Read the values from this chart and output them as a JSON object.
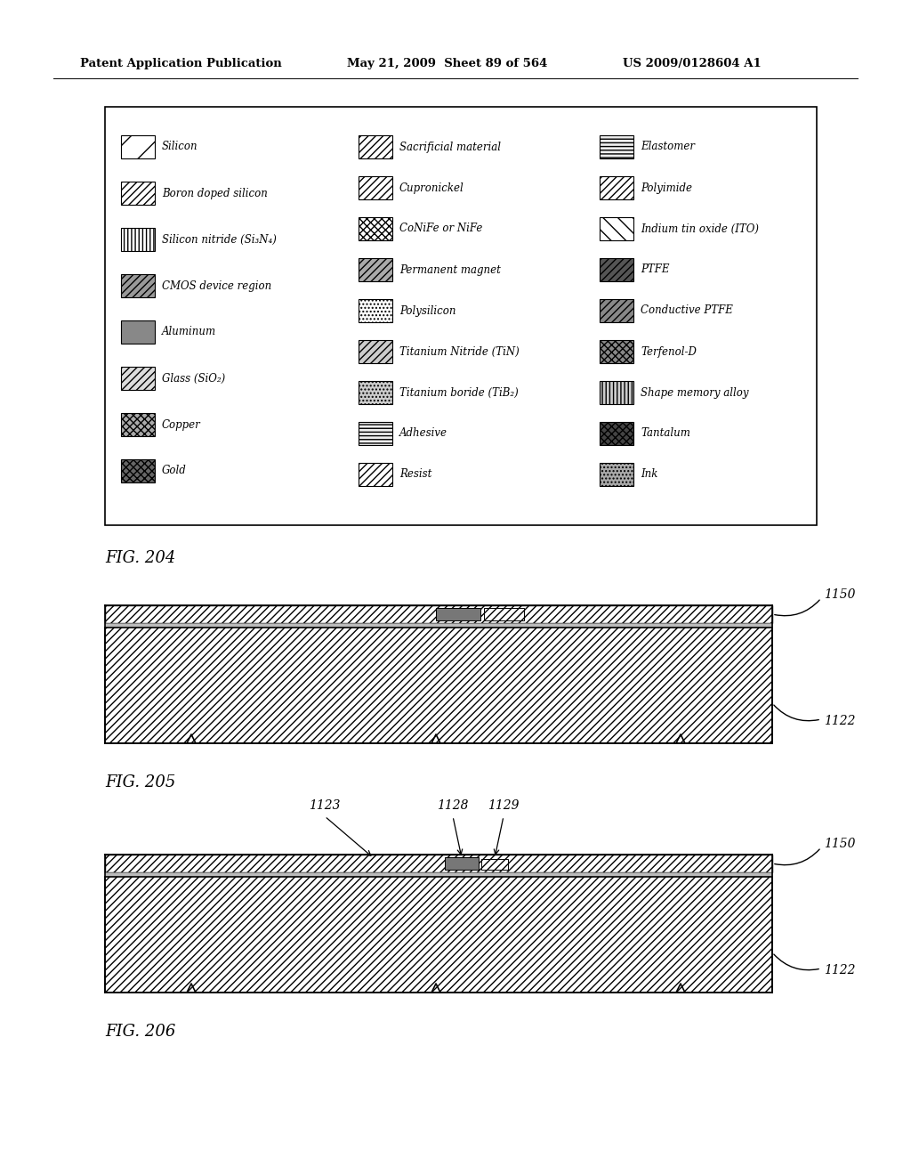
{
  "header_left": "Patent Application Publication",
  "header_mid": "May 21, 2009  Sheet 89 of 564",
  "header_right": "US 2009/0128604 A1",
  "fig204_label": "FIG. 204",
  "fig205_label": "FIG. 205",
  "fig206_label": "FIG. 206",
  "legend_col1": [
    {
      "label": "Silicon",
      "hatch": "/",
      "fc": "white"
    },
    {
      "label": "Boron doped silicon",
      "hatch": "////",
      "fc": "white"
    },
    {
      "label": "Silicon nitride (Si₃N₄)",
      "hatch": "||||",
      "fc": "white"
    },
    {
      "label": "CMOS device region",
      "hatch": "////",
      "fc": "#999999"
    },
    {
      "label": "Aluminum",
      "hatch": "",
      "fc": "#888888"
    },
    {
      "label": "Glass (SiO₂)",
      "hatch": "////",
      "fc": "#dddddd"
    },
    {
      "label": "Copper",
      "hatch": "xxxx",
      "fc": "#aaaaaa"
    },
    {
      "label": "Gold",
      "hatch": "xxxx",
      "fc": "#666666"
    }
  ],
  "legend_col2": [
    {
      "label": "Sacrificial material",
      "hatch": "////",
      "fc": "white"
    },
    {
      "label": "Cupronickel",
      "hatch": "////",
      "fc": "white"
    },
    {
      "label": "CoNiFe or NiFe",
      "hatch": "xxxx",
      "fc": "white"
    },
    {
      "label": "Permanent magnet",
      "hatch": "////",
      "fc": "#aaaaaa"
    },
    {
      "label": "Polysilicon",
      "hatch": "....",
      "fc": "white"
    },
    {
      "label": "Titanium Nitride (TiN)",
      "hatch": "////",
      "fc": "#cccccc"
    },
    {
      "label": "Titanium boride (TiB₂)",
      "hatch": "....",
      "fc": "#cccccc"
    },
    {
      "label": "Adhesive",
      "hatch": "----",
      "fc": "#eeeeee"
    },
    {
      "label": "Resist",
      "hatch": "////",
      "fc": "white"
    }
  ],
  "legend_col3": [
    {
      "label": "Elastomer",
      "hatch": "----",
      "fc": "#eeeeee"
    },
    {
      "label": "Polyimide",
      "hatch": "////",
      "fc": "white"
    },
    {
      "label": "Indium tin oxide (ITO)",
      "hatch": "\\\\",
      "fc": "white"
    },
    {
      "label": "PTFE",
      "hatch": "////",
      "fc": "#555555"
    },
    {
      "label": "Conductive PTFE",
      "hatch": "////",
      "fc": "#888888"
    },
    {
      "label": "Terfenol-D",
      "hatch": "xxxx",
      "fc": "#888888"
    },
    {
      "label": "Shape memory alloy",
      "hatch": "||||",
      "fc": "#cccccc"
    },
    {
      "label": "Tantalum",
      "hatch": "xxxx",
      "fc": "#444444"
    },
    {
      "label": "Ink",
      "hatch": "....",
      "fc": "#aaaaaa"
    }
  ]
}
